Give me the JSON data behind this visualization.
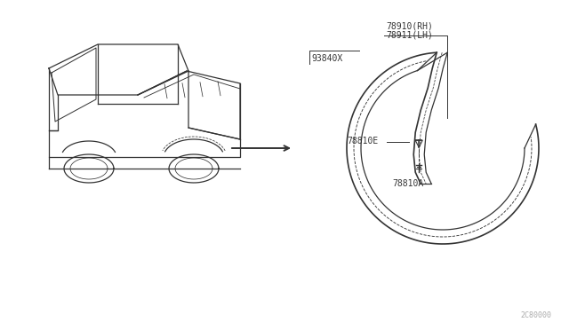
{
  "bg_color": "#ffffff",
  "line_color": "#333333",
  "label_color": "#333333",
  "diagram_id": "2C80000",
  "labels": {
    "78910RH": "78910(RH)",
    "78911LH": "78911(LH)",
    "93840X": "93840X",
    "78810E": "78810E",
    "78810A": "78810A"
  }
}
